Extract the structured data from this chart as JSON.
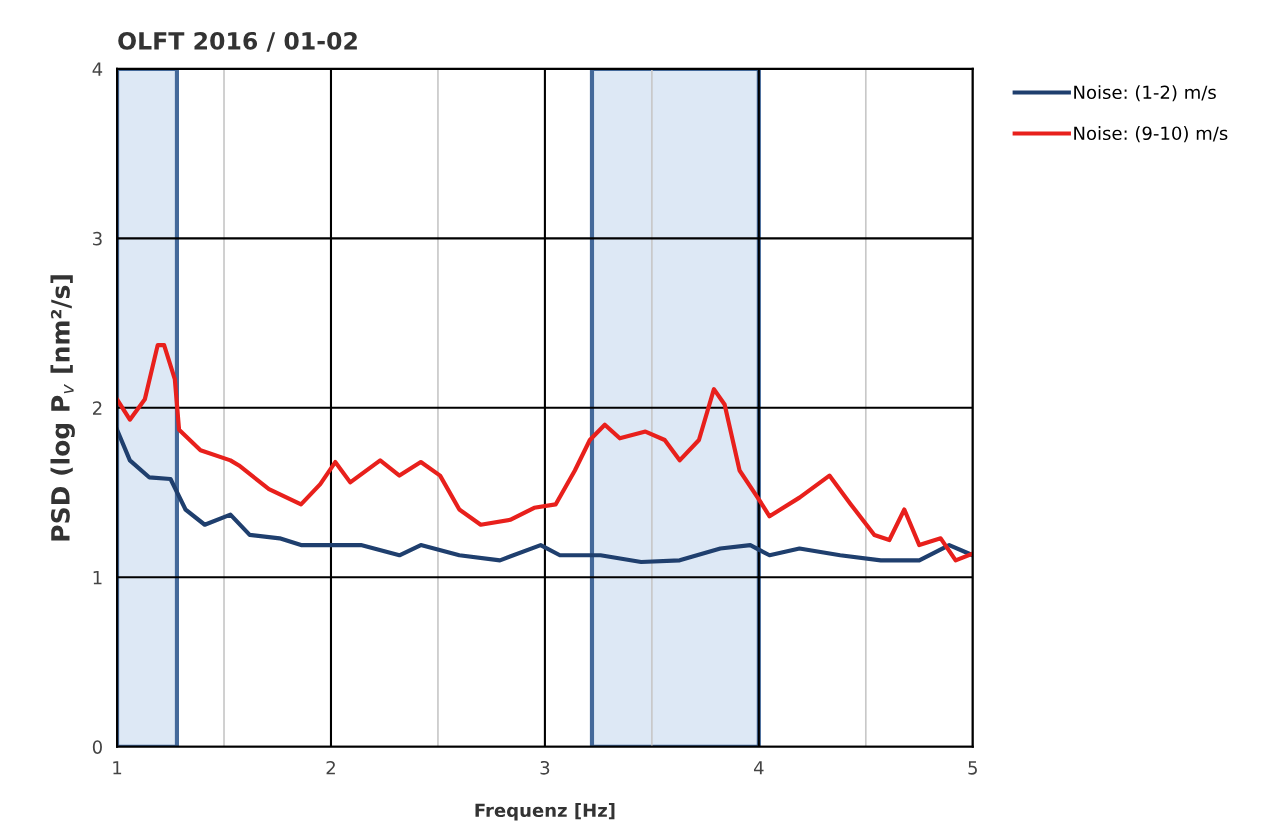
{
  "chart_data": {
    "type": "line",
    "title": "OLFT 2016 / 01-02",
    "xlabel": "Frequenz [Hz]",
    "ylabel": "PSD (log P$_{v}$ [nm²/s]",
    "xlim": [
      1,
      5
    ],
    "ylim": [
      0,
      4
    ],
    "xticks": [
      1,
      {
        "value": 1.5,
        "label": null
      },
      2,
      {
        "value": 2.5,
        "label": null
      },
      3,
      {
        "value": 3.5,
        "label": null
      },
      4,
      {
        "value": 4.5,
        "label": null
      },
      5
    ],
    "yticks": [
      0,
      1,
      2,
      3,
      4
    ],
    "grid": true,
    "legend": "top right",
    "marker": "none",
    "line_style": "solid",
    "bands": [
      {
        "axis": "x",
        "from": 1.0,
        "to": 1.28,
        "color": "#dde8f5"
      },
      {
        "axis": "x",
        "from": 3.22,
        "to": 4.0,
        "color": "#dde8f5"
      }
    ],
    "series": [
      {
        "name": "Noise: (1-2) m/s",
        "color": "#1f3f6e",
        "x": [
          1.0,
          1.06,
          1.15,
          1.25,
          1.32,
          1.41,
          1.53,
          1.62,
          1.76,
          1.86,
          2.0,
          2.14,
          2.32,
          2.42,
          2.6,
          2.79,
          2.98,
          3.07,
          3.26,
          3.45,
          3.63,
          3.82,
          3.96,
          4.05,
          4.19,
          4.38,
          4.57,
          4.75,
          4.89,
          5.0
        ],
        "values": [
          1.87,
          1.69,
          1.59,
          1.58,
          1.4,
          1.31,
          1.37,
          1.25,
          1.23,
          1.19,
          1.19,
          1.19,
          1.13,
          1.19,
          1.13,
          1.1,
          1.19,
          1.13,
          1.13,
          1.09,
          1.1,
          1.17,
          1.19,
          1.13,
          1.17,
          1.13,
          1.1,
          1.1,
          1.19,
          1.13
        ]
      },
      {
        "name": "Noise: (9-10) m/s",
        "color": "#e8201c",
        "x": [
          1.0,
          1.06,
          1.13,
          1.19,
          1.22,
          1.27,
          1.29,
          1.39,
          1.53,
          1.57,
          1.71,
          1.86,
          1.95,
          2.02,
          2.09,
          2.23,
          2.32,
          2.42,
          2.51,
          2.6,
          2.7,
          2.84,
          2.95,
          3.05,
          3.14,
          3.21,
          3.28,
          3.35,
          3.47,
          3.56,
          3.63,
          3.72,
          3.79,
          3.84,
          3.91,
          4.0,
          4.05,
          4.19,
          4.33,
          4.43,
          4.54,
          4.61,
          4.68,
          4.75,
          4.85,
          4.92,
          5.0
        ],
        "values": [
          2.05,
          1.93,
          2.05,
          2.37,
          2.37,
          2.17,
          1.87,
          1.75,
          1.69,
          1.66,
          1.52,
          1.43,
          1.55,
          1.68,
          1.56,
          1.69,
          1.6,
          1.68,
          1.6,
          1.4,
          1.31,
          1.34,
          1.41,
          1.43,
          1.63,
          1.81,
          1.9,
          1.82,
          1.86,
          1.81,
          1.69,
          1.81,
          2.11,
          2.02,
          1.63,
          1.46,
          1.36,
          1.47,
          1.6,
          1.43,
          1.25,
          1.22,
          1.4,
          1.19,
          1.23,
          1.1,
          1.14
        ]
      }
    ]
  }
}
